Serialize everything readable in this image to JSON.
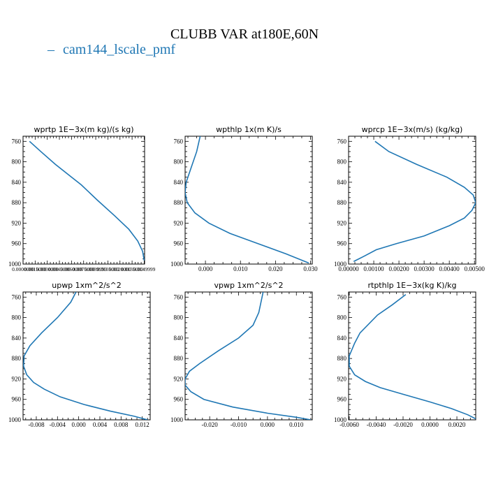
{
  "figure": {
    "title": "CLUBB VAR at180E,60N",
    "legend": [
      {
        "marker": "–",
        "label": "cam144_lscale_pmf",
        "color": "#1f77b4"
      }
    ]
  },
  "chart_data": [
    {
      "type": "line",
      "title": "wprtp  1E−3x(m kg)/(s kg)",
      "ylim": [
        1000,
        750
      ],
      "yticks": [
        1000,
        960,
        920,
        880,
        840,
        800,
        760
      ],
      "xlim": [
        0,
        0.01505
      ],
      "xticks": [
        0,
        0.0015,
        0.003,
        0.0045,
        0.006,
        0.0075,
        0.009,
        0.0105,
        0.012,
        0.0135,
        0.015
      ],
      "xticklabels": [
        "0.0000000",
        "0.0015000",
        "0.0030000",
        "0.0045000",
        "0.0060000",
        "0.0075000",
        "0.0089999",
        "0.0105000",
        "0.0120000",
        "0.0135000",
        "0.0149999"
      ],
      "xtick_font": "small",
      "series": [
        {
          "x": [
            0.0008,
            0.0022,
            0.004,
            0.0072,
            0.0092,
            0.0113,
            0.0131,
            0.0142,
            0.0148,
            0.015
          ],
          "y": [
            760,
            780,
            805,
            845,
            875,
            905,
            932,
            955,
            975,
            993
          ]
        }
      ]
    },
    {
      "type": "line",
      "title": "wpthlp  1x(m K)/s",
      "ylim": [
        1000,
        750
      ],
      "yticks": [
        1000,
        960,
        920,
        880,
        840,
        800,
        760
      ],
      "xlim": [
        -0.0058,
        0.0305
      ],
      "xticks": [
        0.0,
        0.01,
        0.02,
        0.03
      ],
      "xticklabels": [
        "0.000",
        "0.010",
        "0.020",
        "0.030"
      ],
      "series": [
        {
          "x": [
            -0.0015,
            -0.0025,
            -0.004,
            -0.0055,
            -0.0058,
            -0.0052,
            -0.003,
            0.001,
            0.007,
            0.015,
            0.023,
            0.0295
          ],
          "y": [
            750,
            780,
            810,
            840,
            860,
            880,
            900,
            920,
            940,
            960,
            980,
            998
          ]
        }
      ]
    },
    {
      "type": "line",
      "title": "wprcp  1E−3x(m/s) (kg/kg)",
      "ylim": [
        1000,
        750
      ],
      "yticks": [
        1000,
        960,
        920,
        880,
        840,
        800,
        760
      ],
      "xlim": [
        0,
        0.00505
      ],
      "xticks": [
        0,
        0.001,
        0.002,
        0.003,
        0.004,
        0.005
      ],
      "xticklabels": [
        "0.00000",
        "0.00100",
        "0.00200",
        "0.00300",
        "0.00400",
        "0.00500"
      ],
      "series": [
        {
          "x": [
            0.00105,
            0.0016,
            0.0027,
            0.0039,
            0.0046,
            0.00495,
            0.00505,
            0.0049,
            0.0046,
            0.004,
            0.003,
            0.0019,
            0.0011,
            0.0006,
            0.0002
          ],
          "y": [
            760,
            780,
            805,
            830,
            850,
            865,
            880,
            895,
            910,
            925,
            945,
            960,
            972,
            985,
            995
          ]
        }
      ]
    },
    {
      "type": "line",
      "title": "upwp  1xm^2/s^2",
      "ylim": [
        1000,
        750
      ],
      "yticks": [
        1000,
        960,
        920,
        880,
        840,
        800,
        760
      ],
      "xlim": [
        -0.0105,
        0.0135
      ],
      "xticks": [
        -0.008,
        -0.004,
        0.0,
        0.004,
        0.008,
        0.012
      ],
      "xticklabels": [
        "-0.008",
        "-0.004",
        "0.000",
        "0.004",
        "0.008",
        "0.012"
      ],
      "series": [
        {
          "x": [
            -0.0005,
            -0.0015,
            -0.004,
            -0.007,
            -0.0092,
            -0.0103,
            -0.0104,
            -0.0098,
            -0.0085,
            -0.0065,
            -0.0035,
            0.001,
            0.006,
            0.0105,
            0.013
          ],
          "y": [
            750,
            770,
            800,
            830,
            855,
            875,
            895,
            912,
            927,
            940,
            955,
            970,
            983,
            993,
            1000
          ]
        }
      ]
    },
    {
      "type": "line",
      "title": "vpwp  1xm^2/s^2",
      "ylim": [
        1000,
        750
      ],
      "yticks": [
        1000,
        960,
        920,
        880,
        840,
        800,
        760
      ],
      "xlim": [
        -0.0285,
        0.0155
      ],
      "xticks": [
        -0.02,
        -0.01,
        0.0,
        0.01
      ],
      "xticklabels": [
        "-0.020",
        "-0.010",
        "0.000",
        "0.010"
      ],
      "series": [
        {
          "x": [
            -0.0015,
            -0.003,
            -0.005,
            -0.01,
            -0.017,
            -0.0235,
            -0.027,
            -0.0285,
            -0.0285,
            -0.0265,
            -0.022,
            -0.012,
            0.0,
            0.01,
            0.015
          ],
          "y": [
            750,
            790,
            815,
            840,
            865,
            890,
            905,
            920,
            932,
            945,
            960,
            975,
            987,
            995,
            1000
          ]
        }
      ]
    },
    {
      "type": "line",
      "title": "rtpthlp  1E−3x(kg K)/kg",
      "ylim": [
        1000,
        750
      ],
      "yticks": [
        1000,
        960,
        920,
        880,
        840,
        800,
        760
      ],
      "xlim": [
        -0.00605,
        0.0034
      ],
      "xticks": [
        -0.006,
        -0.004,
        -0.002,
        0.0,
        0.002
      ],
      "xticklabels": [
        "-0.0060",
        "-0.0040",
        "-0.0020",
        "0.0000",
        "0.0020"
      ],
      "series": [
        {
          "x": [
            -0.0018,
            -0.0028,
            -0.0039,
            -0.0052,
            -0.0056,
            -0.006,
            -0.006,
            -0.0056,
            -0.0048,
            -0.0037,
            -0.002,
            0.0,
            0.0016,
            0.0028,
            0.0034
          ],
          "y": [
            755,
            775,
            795,
            830,
            850,
            875,
            895,
            912,
            925,
            937,
            950,
            965,
            978,
            990,
            998
          ]
        }
      ]
    }
  ]
}
